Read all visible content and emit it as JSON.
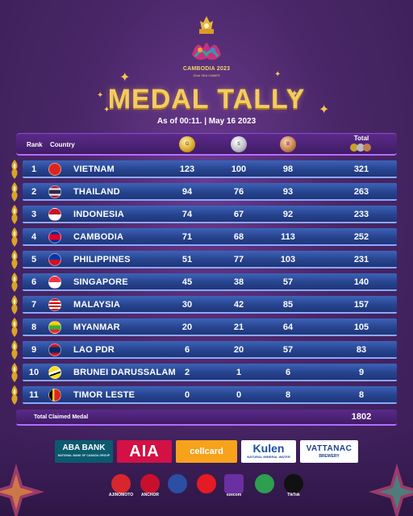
{
  "event": {
    "logo_title": "CAMBODIA 2023",
    "logo_subtitle": "32nd SEA GAMES",
    "title": "MEDAL TALLY",
    "as_of": "As of 00:11. | May 16 2023"
  },
  "table": {
    "headers": {
      "rank": "Rank",
      "country": "Country",
      "total": "Total"
    },
    "medal_icons": [
      "gold-medal-icon",
      "silver-medal-icon",
      "bronze-medal-icon"
    ],
    "rows": [
      {
        "rank": "1",
        "country": "VIETNAM",
        "gold": "123",
        "silver": "100",
        "bronze": "98",
        "total": "321",
        "flag": "vietnam-flag-icon"
      },
      {
        "rank": "2",
        "country": "THAILAND",
        "gold": "94",
        "silver": "76",
        "bronze": "93",
        "total": "263",
        "flag": "thailand-flag-icon"
      },
      {
        "rank": "3",
        "country": "INDONESIA",
        "gold": "74",
        "silver": "67",
        "bronze": "92",
        "total": "233",
        "flag": "indonesia-flag-icon"
      },
      {
        "rank": "4",
        "country": "CAMBODIA",
        "gold": "71",
        "silver": "68",
        "bronze": "113",
        "total": "252",
        "flag": "cambodia-flag-icon"
      },
      {
        "rank": "5",
        "country": "PHILIPPINES",
        "gold": "51",
        "silver": "77",
        "bronze": "103",
        "total": "231",
        "flag": "philippines-flag-icon"
      },
      {
        "rank": "6",
        "country": "SINGAPORE",
        "gold": "45",
        "silver": "38",
        "bronze": "57",
        "total": "140",
        "flag": "singapore-flag-icon"
      },
      {
        "rank": "7",
        "country": "MALAYSIA",
        "gold": "30",
        "silver": "42",
        "bronze": "85",
        "total": "157",
        "flag": "malaysia-flag-icon"
      },
      {
        "rank": "8",
        "country": "MYANMAR",
        "gold": "20",
        "silver": "21",
        "bronze": "64",
        "total": "105",
        "flag": "myanmar-flag-icon"
      },
      {
        "rank": "9",
        "country": "LAO PDR",
        "gold": "6",
        "silver": "20",
        "bronze": "57",
        "total": "83",
        "flag": "laos-flag-icon"
      },
      {
        "rank": "10",
        "country": "BRUNEI DARUSSALAM",
        "gold": "2",
        "silver": "1",
        "bronze": "6",
        "total": "9",
        "flag": "brunei-flag-icon"
      },
      {
        "rank": "11",
        "country": "TIMOR LESTE",
        "gold": "0",
        "silver": "0",
        "bronze": "8",
        "total": "8",
        "flag": "timor-leste-flag-icon"
      }
    ],
    "footer_label": "Total Claimed Medal",
    "footer_total": "1802"
  },
  "sponsors": {
    "aba_line1": "ABA BANK",
    "aba_line2": "NATIONAL BANK OF CANADA GROUP",
    "aia": "AIA",
    "cellcard": "cellcard",
    "kulen_line1": "Kulen",
    "kulen_line2": "NATURAL MINERAL WATER",
    "vattanac_line1": "VATTANAC",
    "vattanac_line2": "BREWERY",
    "minor": [
      "AJINOMOTO",
      "ANCHOR",
      "",
      "",
      "ezecom",
      "",
      "TikTok"
    ]
  },
  "colors": {
    "background": "#4a2768",
    "title_gold": "#f5cc5e",
    "row_blue": "#27448f",
    "header_purple": "#3f1c66"
  }
}
